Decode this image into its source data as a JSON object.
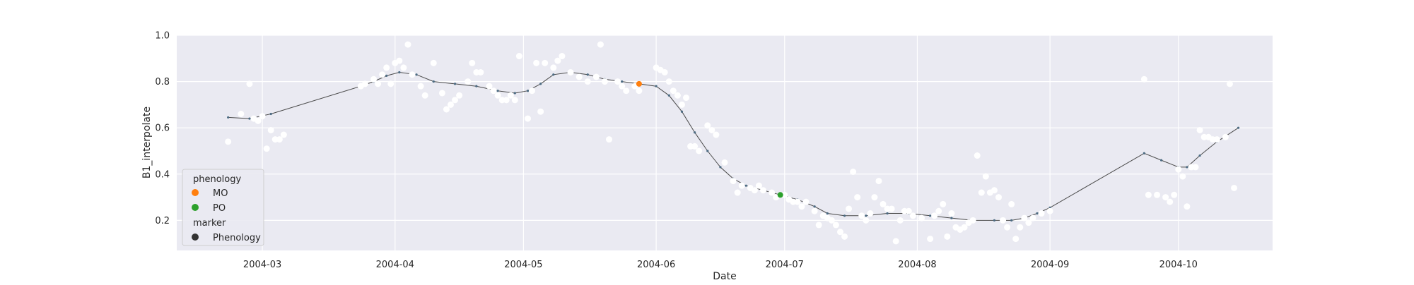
{
  "chart_data": {
    "type": "scatter",
    "title": "",
    "xlabel": "Date",
    "ylabel": "B1_interpolate",
    "xlim": [
      "2004-02-10",
      "2004-10-23"
    ],
    "ylim": [
      0.07,
      1.0
    ],
    "grid": true,
    "x_ticks": [
      "2004-03-01",
      "2004-04-01",
      "2004-05-01",
      "2004-06-01",
      "2004-07-01",
      "2004-08-01",
      "2004-09-01",
      "2004-10-01"
    ],
    "x_tick_labels": [
      "2004-03",
      "2004-04",
      "2004-05",
      "2004-06",
      "2004-07",
      "2004-08",
      "2004-09",
      "2004-10"
    ],
    "y_ticks": [
      0.2,
      0.4,
      0.6,
      0.8,
      1.0
    ],
    "y_tick_labels": [
      "0.2",
      "0.4",
      "0.6",
      "0.8",
      "1.0"
    ],
    "colors": {
      "background": "#eaeaf2",
      "grid": "#ffffff",
      "observations": "#ffffff",
      "curve": "#4a4a4a",
      "curve_marker": "#4c6b82",
      "MO": "#ff7f0e",
      "PO": "#2ca02c",
      "Phenology": "#333333"
    },
    "legend": {
      "position": "lower-left",
      "title_hue": "phenology",
      "title_marker": "marker",
      "entries": [
        {
          "label": "MO",
          "color": "#ff7f0e"
        },
        {
          "label": "PO",
          "color": "#2ca02c"
        },
        {
          "label": "Phenology",
          "color": "#333333"
        }
      ]
    },
    "series": [
      {
        "kind": "observations",
        "points": [
          [
            "2004-02-22",
            0.54
          ],
          [
            "2004-02-25",
            0.66
          ],
          [
            "2004-02-27",
            0.79
          ],
          [
            "2004-02-28",
            0.64
          ],
          [
            "2004-02-29",
            0.63
          ],
          [
            "2004-03-01",
            0.65
          ],
          [
            "2004-03-02",
            0.51
          ],
          [
            "2004-03-03",
            0.59
          ],
          [
            "2004-03-04",
            0.55
          ],
          [
            "2004-03-05",
            0.55
          ],
          [
            "2004-03-06",
            0.57
          ],
          [
            "2004-03-24",
            0.78
          ],
          [
            "2004-03-25",
            0.79
          ],
          [
            "2004-03-27",
            0.81
          ],
          [
            "2004-03-28",
            0.79
          ],
          [
            "2004-03-29",
            0.83
          ],
          [
            "2004-03-30",
            0.86
          ],
          [
            "2004-03-31",
            0.79
          ],
          [
            "2004-04-01",
            0.88
          ],
          [
            "2004-04-02",
            0.89
          ],
          [
            "2004-04-03",
            0.86
          ],
          [
            "2004-04-04",
            0.96
          ],
          [
            "2004-04-05",
            0.83
          ],
          [
            "2004-04-07",
            0.78
          ],
          [
            "2004-04-08",
            0.74
          ],
          [
            "2004-04-10",
            0.88
          ],
          [
            "2004-04-12",
            0.75
          ],
          [
            "2004-04-13",
            0.68
          ],
          [
            "2004-04-14",
            0.7
          ],
          [
            "2004-04-15",
            0.72
          ],
          [
            "2004-04-16",
            0.74
          ],
          [
            "2004-04-18",
            0.8
          ],
          [
            "2004-04-19",
            0.88
          ],
          [
            "2004-04-20",
            0.84
          ],
          [
            "2004-04-21",
            0.84
          ],
          [
            "2004-04-23",
            0.78
          ],
          [
            "2004-04-24",
            0.76
          ],
          [
            "2004-04-25",
            0.74
          ],
          [
            "2004-04-26",
            0.72
          ],
          [
            "2004-04-27",
            0.72
          ],
          [
            "2004-04-28",
            0.74
          ],
          [
            "2004-04-29",
            0.72
          ],
          [
            "2004-04-30",
            0.91
          ],
          [
            "2004-05-02",
            0.64
          ],
          [
            "2004-05-03",
            0.76
          ],
          [
            "2004-05-04",
            0.88
          ],
          [
            "2004-05-05",
            0.67
          ],
          [
            "2004-05-06",
            0.88
          ],
          [
            "2004-05-08",
            0.86
          ],
          [
            "2004-05-09",
            0.89
          ],
          [
            "2004-05-10",
            0.91
          ],
          [
            "2004-05-12",
            0.84
          ],
          [
            "2004-05-14",
            0.82
          ],
          [
            "2004-05-16",
            0.8
          ],
          [
            "2004-05-18",
            0.82
          ],
          [
            "2004-05-19",
            0.96
          ],
          [
            "2004-05-20",
            0.8
          ],
          [
            "2004-05-21",
            0.55
          ],
          [
            "2004-05-23",
            0.8
          ],
          [
            "2004-05-24",
            0.78
          ],
          [
            "2004-05-25",
            0.76
          ],
          [
            "2004-05-27",
            0.78
          ],
          [
            "2004-05-28",
            0.76
          ],
          [
            "2004-06-01",
            0.86
          ],
          [
            "2004-06-02",
            0.85
          ],
          [
            "2004-06-03",
            0.84
          ],
          [
            "2004-06-04",
            0.8
          ],
          [
            "2004-06-05",
            0.76
          ],
          [
            "2004-06-06",
            0.74
          ],
          [
            "2004-06-07",
            0.7
          ],
          [
            "2004-06-08",
            0.73
          ],
          [
            "2004-06-09",
            0.52
          ],
          [
            "2004-06-10",
            0.52
          ],
          [
            "2004-06-11",
            0.5
          ],
          [
            "2004-06-13",
            0.61
          ],
          [
            "2004-06-14",
            0.59
          ],
          [
            "2004-06-15",
            0.57
          ],
          [
            "2004-06-17",
            0.45
          ],
          [
            "2004-06-19",
            0.37
          ],
          [
            "2004-06-20",
            0.32
          ],
          [
            "2004-06-21",
            0.35
          ],
          [
            "2004-06-23",
            0.34
          ],
          [
            "2004-06-24",
            0.33
          ],
          [
            "2004-06-25",
            0.35
          ],
          [
            "2004-06-26",
            0.33
          ],
          [
            "2004-06-28",
            0.32
          ],
          [
            "2004-06-29",
            0.3
          ],
          [
            "2004-07-01",
            0.31
          ],
          [
            "2004-07-02",
            0.29
          ],
          [
            "2004-07-03",
            0.28
          ],
          [
            "2004-07-04",
            0.28
          ],
          [
            "2004-07-05",
            0.26
          ],
          [
            "2004-07-06",
            0.28
          ],
          [
            "2004-07-08",
            0.24
          ],
          [
            "2004-07-09",
            0.18
          ],
          [
            "2004-07-10",
            0.22
          ],
          [
            "2004-07-11",
            0.21
          ],
          [
            "2004-07-12",
            0.2
          ],
          [
            "2004-07-13",
            0.18
          ],
          [
            "2004-07-14",
            0.15
          ],
          [
            "2004-07-15",
            0.13
          ],
          [
            "2004-07-16",
            0.25
          ],
          [
            "2004-07-17",
            0.41
          ],
          [
            "2004-07-18",
            0.3
          ],
          [
            "2004-07-19",
            0.22
          ],
          [
            "2004-07-20",
            0.2
          ],
          [
            "2004-07-21",
            0.23
          ],
          [
            "2004-07-22",
            0.3
          ],
          [
            "2004-07-23",
            0.37
          ],
          [
            "2004-07-24",
            0.27
          ],
          [
            "2004-07-25",
            0.25
          ],
          [
            "2004-07-26",
            0.25
          ],
          [
            "2004-07-27",
            0.11
          ],
          [
            "2004-07-28",
            0.2
          ],
          [
            "2004-07-29",
            0.24
          ],
          [
            "2004-07-30",
            0.24
          ],
          [
            "2004-07-31",
            0.22
          ],
          [
            "2004-08-02",
            0.21
          ],
          [
            "2004-08-04",
            0.12
          ],
          [
            "2004-08-05",
            0.22
          ],
          [
            "2004-08-06",
            0.24
          ],
          [
            "2004-08-07",
            0.27
          ],
          [
            "2004-08-08",
            0.13
          ],
          [
            "2004-08-09",
            0.23
          ],
          [
            "2004-08-10",
            0.17
          ],
          [
            "2004-08-11",
            0.16
          ],
          [
            "2004-08-12",
            0.17
          ],
          [
            "2004-08-13",
            0.19
          ],
          [
            "2004-08-14",
            0.2
          ],
          [
            "2004-08-15",
            0.48
          ],
          [
            "2004-08-16",
            0.32
          ],
          [
            "2004-08-17",
            0.39
          ],
          [
            "2004-08-18",
            0.32
          ],
          [
            "2004-08-19",
            0.33
          ],
          [
            "2004-08-20",
            0.3
          ],
          [
            "2004-08-21",
            0.2
          ],
          [
            "2004-08-22",
            0.17
          ],
          [
            "2004-08-23",
            0.27
          ],
          [
            "2004-08-24",
            0.12
          ],
          [
            "2004-08-25",
            0.17
          ],
          [
            "2004-08-26",
            0.21
          ],
          [
            "2004-08-27",
            0.19
          ],
          [
            "2004-08-28",
            0.21
          ],
          [
            "2004-08-30",
            0.23
          ],
          [
            "2004-09-01",
            0.24
          ],
          [
            "2004-09-23",
            0.81
          ],
          [
            "2004-09-24",
            0.31
          ],
          [
            "2004-09-26",
            0.31
          ],
          [
            "2004-09-28",
            0.3
          ],
          [
            "2004-09-29",
            0.28
          ],
          [
            "2004-09-30",
            0.31
          ],
          [
            "2004-10-01",
            0.42
          ],
          [
            "2004-10-02",
            0.39
          ],
          [
            "2004-10-03",
            0.26
          ],
          [
            "2004-10-04",
            0.43
          ],
          [
            "2004-10-05",
            0.43
          ],
          [
            "2004-10-06",
            0.59
          ],
          [
            "2004-10-07",
            0.56
          ],
          [
            "2004-10-08",
            0.56
          ],
          [
            "2004-10-09",
            0.55
          ],
          [
            "2004-10-10",
            0.55
          ],
          [
            "2004-10-12",
            0.56
          ],
          [
            "2004-10-13",
            0.79
          ],
          [
            "2004-10-14",
            0.34
          ]
        ]
      },
      {
        "kind": "interpolated-curve",
        "points": [
          [
            "2004-02-22",
            0.645
          ],
          [
            "2004-02-27",
            0.64
          ],
          [
            "2004-03-03",
            0.66
          ],
          [
            "2004-03-24",
            0.78
          ],
          [
            "2004-03-27",
            0.8
          ],
          [
            "2004-03-30",
            0.825
          ],
          [
            "2004-04-02",
            0.84
          ],
          [
            "2004-04-06",
            0.83
          ],
          [
            "2004-04-10",
            0.8
          ],
          [
            "2004-04-15",
            0.79
          ],
          [
            "2004-04-20",
            0.78
          ],
          [
            "2004-04-25",
            0.76
          ],
          [
            "2004-04-29",
            0.75
          ],
          [
            "2004-05-02",
            0.76
          ],
          [
            "2004-05-05",
            0.79
          ],
          [
            "2004-05-08",
            0.83
          ],
          [
            "2004-05-12",
            0.84
          ],
          [
            "2004-05-16",
            0.83
          ],
          [
            "2004-05-20",
            0.81
          ],
          [
            "2004-05-24",
            0.8
          ],
          [
            "2004-05-28",
            0.79
          ],
          [
            "2004-06-01",
            0.78
          ],
          [
            "2004-06-04",
            0.74
          ],
          [
            "2004-06-07",
            0.67
          ],
          [
            "2004-06-10",
            0.58
          ],
          [
            "2004-06-13",
            0.5
          ],
          [
            "2004-06-16",
            0.43
          ],
          [
            "2004-06-19",
            0.38
          ],
          [
            "2004-06-22",
            0.35
          ],
          [
            "2004-06-26",
            0.33
          ],
          [
            "2004-06-30",
            0.31
          ],
          [
            "2004-07-04",
            0.29
          ],
          [
            "2004-07-08",
            0.26
          ],
          [
            "2004-07-11",
            0.23
          ],
          [
            "2004-07-15",
            0.22
          ],
          [
            "2004-07-20",
            0.22
          ],
          [
            "2004-07-25",
            0.23
          ],
          [
            "2004-07-30",
            0.23
          ],
          [
            "2004-08-04",
            0.22
          ],
          [
            "2004-08-09",
            0.21
          ],
          [
            "2004-08-14",
            0.2
          ],
          [
            "2004-08-19",
            0.2
          ],
          [
            "2004-08-23",
            0.2
          ],
          [
            "2004-08-26",
            0.21
          ],
          [
            "2004-08-29",
            0.23
          ],
          [
            "2004-09-01",
            0.255
          ],
          [
            "2004-09-23",
            0.49
          ],
          [
            "2004-09-27",
            0.46
          ],
          [
            "2004-10-01",
            0.43
          ],
          [
            "2004-10-03",
            0.43
          ],
          [
            "2004-10-06",
            0.48
          ],
          [
            "2004-10-10",
            0.54
          ],
          [
            "2004-10-15",
            0.6
          ]
        ]
      },
      {
        "kind": "phenology",
        "points": [
          {
            "label": "MO",
            "date": "2004-05-28",
            "value": 0.79
          },
          {
            "label": "PO",
            "date": "2004-06-30",
            "value": 0.31
          }
        ]
      }
    ]
  }
}
